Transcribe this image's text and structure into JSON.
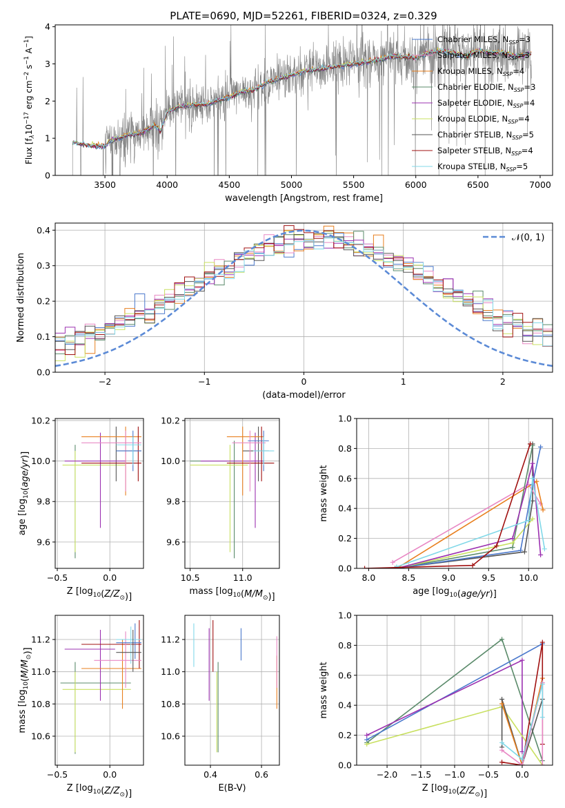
{
  "title": "PLATE=0690, MJD=52261, FIBERID=0324, z=0.329",
  "colors": [
    "#1f77b4",
    "#e377c2",
    "#ff7f0e",
    "#5a8a6a",
    "#9b30b0",
    "#c6e05a",
    "#555555",
    "#a01010",
    "#80d8e8"
  ],
  "models": [
    {
      "name": "Chabrier MILES, N",
      "nssp": "=3",
      "color": "#4a78cc"
    },
    {
      "name": "Salpeter MILES, N",
      "nssp": "=3",
      "color": "#e887c4"
    },
    {
      "name": "Kroupa MILES, N",
      "nssp": "=4",
      "color": "#e87f1e"
    },
    {
      "name": "Chabrier ELODIE, N",
      "nssp": "=3",
      "color": "#5a8a6a"
    },
    {
      "name": "Salpeter ELODIE, N",
      "nssp": "=4",
      "color": "#9b30b0"
    },
    {
      "name": "Kroupa ELODIE, N",
      "nssp": "=4",
      "color": "#c8e060"
    },
    {
      "name": "Chabrier STELIB, N",
      "nssp": "=5",
      "color": "#555555"
    },
    {
      "name": "Salpeter STELIB, N",
      "nssp": "=4",
      "color": "#a01010"
    },
    {
      "name": "Kroupa STELIB, N",
      "nssp": "=5",
      "color": "#80d8e8"
    }
  ],
  "chart_data": [
    {
      "id": "spectrum",
      "type": "line",
      "title": "PLATE=0690, MJD=52261, FIBERID=0324, z=0.329",
      "xlabel": "wavelength [Angstrom, rest frame]",
      "ylabel_parts": [
        "Flux [f",
        "λ",
        "10",
        "−17",
        " erg cm",
        "−2",
        " s",
        "−1",
        " A",
        "−1",
        "]"
      ],
      "xlim": [
        3100,
        7100
      ],
      "ylim": [
        0,
        4.05
      ],
      "xticks": [
        3500,
        4000,
        4500,
        5000,
        5500,
        6000,
        6500,
        7000
      ],
      "yticks": [
        0,
        1,
        2,
        3,
        4
      ],
      "data_color": "#808080",
      "model_curve": {
        "x": [
          3240,
          3300,
          3400,
          3500,
          3550,
          3600,
          3700,
          3800,
          3900,
          3950,
          4000,
          4100,
          4200,
          4300,
          4400,
          4500,
          4600,
          4700,
          4800,
          4900,
          5000,
          5100,
          5200,
          5300,
          5400,
          5500,
          5600,
          5700,
          5800,
          5900,
          6000,
          6100,
          6200,
          6300,
          6400,
          6500,
          6600,
          6700,
          6800,
          6900,
          6930
        ],
        "y": [
          0.9,
          0.85,
          0.8,
          0.78,
          0.95,
          1.0,
          1.1,
          1.15,
          1.35,
          1.2,
          1.7,
          1.85,
          1.9,
          1.9,
          2.0,
          2.1,
          2.25,
          2.3,
          2.5,
          2.6,
          2.7,
          2.8,
          2.85,
          2.9,
          2.95,
          3.0,
          3.05,
          3.1,
          3.2,
          3.2,
          3.15,
          3.3,
          3.35,
          3.3,
          3.2,
          3.35,
          3.3,
          3.3,
          3.2,
          3.25,
          3.3
        ]
      },
      "legend_placement": "top-right"
    },
    {
      "id": "residuals",
      "type": "histogram",
      "xlabel": "(data-model)/error",
      "ylabel": "Normed distribution",
      "xlim": [
        -2.5,
        2.5
      ],
      "ylim": [
        0,
        0.42
      ],
      "xticks": [
        -2,
        -1,
        0,
        1,
        2
      ],
      "yticks": [
        0.0,
        0.1,
        0.2,
        0.3,
        0.4
      ],
      "bins": [
        -2.5,
        2.5,
        50
      ],
      "gaussian_label": "𝒩(0, 1)",
      "legend_placement": "top-right"
    },
    {
      "id": "age_vs_Z",
      "type": "scatter",
      "xlabel": "Z [log10(Z/Z⊙)]",
      "ylabel": "age  [log10(age/yr)]",
      "xlim": [
        -0.52,
        0.32
      ],
      "ylim": [
        9.47,
        10.21
      ],
      "xticks": [
        -0.5,
        0.0
      ],
      "yticks": [
        9.6,
        9.8,
        10.0,
        10.2
      ]
    },
    {
      "id": "age_vs_mass",
      "type": "scatter",
      "xlabel": "mass [log10(M/M⊙)]",
      "xlim": [
        10.45,
        11.35
      ],
      "ylim": [
        9.47,
        10.21
      ],
      "xticks": [
        10.5,
        11.0
      ],
      "yticks": [
        9.6,
        9.8,
        10.0,
        10.2
      ]
    },
    {
      "id": "weight_vs_age",
      "type": "line",
      "xlabel": "age  [log10(age/yr)]",
      "ylabel": "mass weight",
      "xlim": [
        7.85,
        10.3
      ],
      "ylim": [
        0,
        1.0
      ],
      "xticks": [
        8.0,
        8.5,
        9.0,
        9.5,
        10.0
      ],
      "yticks": [
        0.0,
        0.2,
        0.4,
        0.6,
        0.8,
        1.0
      ]
    },
    {
      "id": "mass_vs_Z",
      "type": "scatter",
      "xlabel": "Z [log10(Z/Z⊙)]",
      "ylabel": "mass [log10(M/M⊙)]",
      "xlim": [
        -0.52,
        0.32
      ],
      "ylim": [
        10.42,
        11.35
      ],
      "xticks": [
        -0.5,
        0.0
      ],
      "yticks": [
        10.6,
        10.8,
        11.0,
        11.2
      ]
    },
    {
      "id": "mass_vs_ebv",
      "type": "scatter",
      "xlabel": "E(B-V)",
      "xlim": [
        0.3,
        0.67
      ],
      "ylim": [
        10.42,
        11.35
      ],
      "xticks": [
        0.4,
        0.6
      ],
      "yticks": [
        10.6,
        10.8,
        11.0,
        11.2
      ]
    },
    {
      "id": "weight_vs_Z",
      "type": "line",
      "xlabel": "Z [log10(Z/Z⊙)]",
      "ylabel": "mass weight",
      "xlim": [
        -2.45,
        0.45
      ],
      "ylim": [
        0,
        1.0
      ],
      "xticks": [
        -2.0,
        -1.5,
        -1.0,
        -0.5,
        0.0
      ],
      "yticks": [
        0.0,
        0.2,
        0.4,
        0.6,
        0.8,
        1.0
      ]
    }
  ]
}
